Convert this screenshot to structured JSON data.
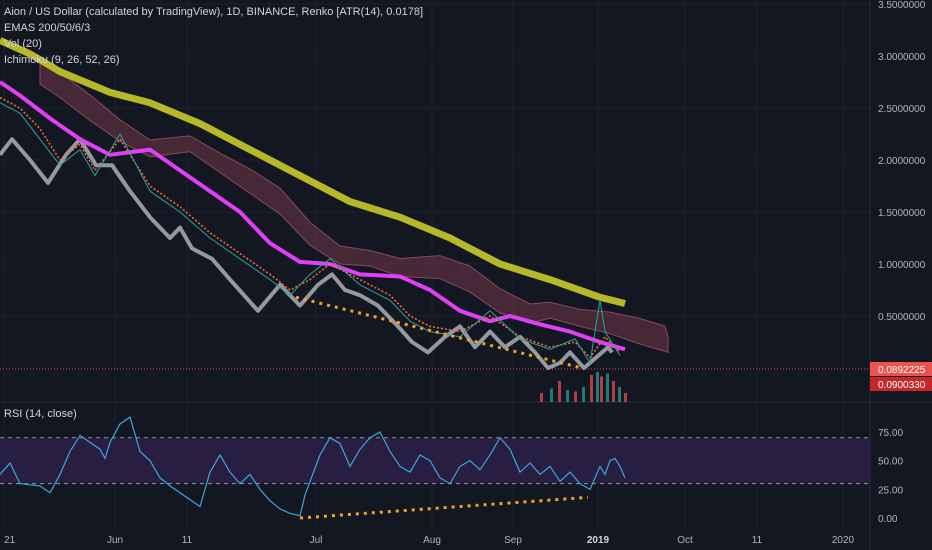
{
  "header": {
    "title": "Aion / US Dollar (calculated by TradingView), 1D, BINANCE, Renko [ATR(14), 0.0178]",
    "indicators": [
      "EMAS 200/50/6/3",
      "Vol (20)",
      "Ichimoku (9, 26, 52, 26)"
    ]
  },
  "rsi_panel": {
    "label": "RSI (14, close)"
  },
  "colors": {
    "background": "#131722",
    "renko": "#9598a1",
    "ema200": "#b7b72a",
    "ema50": "#e040fb",
    "ema6": "#ff6d3a",
    "ema3": "#26a69a",
    "cloud": "#7a3a4a",
    "rsi_line": "#3ba7d9",
    "rsi_band": "#2a1f45",
    "trend": "#f0a030",
    "price_tag_1": "#ef5350",
    "price_tag_2": "#c62828"
  },
  "chart_data": [
    {
      "type": "line",
      "title": "Aion / US Dollar (calculated by TradingView), 1D, BINANCE, Renko [ATR(14), 0.0178]",
      "x": [
        "21",
        "Jun",
        "11",
        "Jul",
        "Aug",
        "Sep",
        "2019",
        "Oct",
        "11",
        "2020"
      ],
      "y_ticks": [
        "0.5000000",
        "1.0000000",
        "1.5000000",
        "2.0000000",
        "2.5000000",
        "3.0000000",
        "3.5000000"
      ],
      "ylim": [
        0,
        3.5
      ],
      "price_tags": [
        "0.0892225",
        "0.0900330"
      ],
      "series": [
        {
          "name": "Renko",
          "values": [
            [
              0,
              2.05
            ],
            [
              12,
              2.2
            ],
            [
              30,
              2.0
            ],
            [
              48,
              1.78
            ],
            [
              66,
              2.05
            ],
            [
              80,
              2.2
            ],
            [
              96,
              1.95
            ],
            [
              112,
              1.95
            ],
            [
              130,
              1.7
            ],
            [
              150,
              1.45
            ],
            [
              170,
              1.25
            ],
            [
              180,
              1.35
            ],
            [
              192,
              1.15
            ],
            [
              212,
              1.05
            ],
            [
              230,
              0.85
            ],
            [
              258,
              0.55
            ],
            [
              280,
              0.8
            ],
            [
              290,
              0.7
            ],
            [
              300,
              0.6
            ],
            [
              318,
              0.8
            ],
            [
              332,
              0.9
            ],
            [
              345,
              0.75
            ],
            [
              360,
              0.7
            ],
            [
              378,
              0.6
            ],
            [
              398,
              0.4
            ],
            [
              412,
              0.25
            ],
            [
              428,
              0.15
            ],
            [
              445,
              0.3
            ],
            [
              460,
              0.4
            ],
            [
              475,
              0.2
            ],
            [
              490,
              0.35
            ],
            [
              505,
              0.2
            ],
            [
              520,
              0.3
            ],
            [
              535,
              0.15
            ],
            [
              548,
              0.0
            ],
            [
              560,
              0.05
            ],
            [
              570,
              0.15
            ],
            [
              584,
              0.0
            ],
            [
              596,
              0.1
            ],
            [
              608,
              0.2
            ],
            [
              612,
              0.15
            ]
          ]
        },
        {
          "name": "EMA 200",
          "values": [
            [
              0,
              3.15
            ],
            [
              30,
              3.02
            ],
            [
              60,
              2.85
            ],
            [
              110,
              2.65
            ],
            [
              150,
              2.55
            ],
            [
              200,
              2.35
            ],
            [
              250,
              2.1
            ],
            [
              300,
              1.85
            ],
            [
              350,
              1.6
            ],
            [
              400,
              1.45
            ],
            [
              450,
              1.25
            ],
            [
              500,
              1.0
            ],
            [
              550,
              0.85
            ],
            [
              600,
              0.68
            ],
            [
              625,
              0.62
            ]
          ]
        },
        {
          "name": "EMA 50",
          "values": [
            [
              0,
              2.75
            ],
            [
              20,
              2.62
            ],
            [
              50,
              2.4
            ],
            [
              80,
              2.2
            ],
            [
              110,
              2.05
            ],
            [
              150,
              2.1
            ],
            [
              180,
              1.9
            ],
            [
              210,
              1.7
            ],
            [
              240,
              1.5
            ],
            [
              270,
              1.2
            ],
            [
              300,
              1.02
            ],
            [
              330,
              1.0
            ],
            [
              360,
              0.9
            ],
            [
              400,
              0.88
            ],
            [
              430,
              0.75
            ],
            [
              460,
              0.55
            ],
            [
              490,
              0.45
            ],
            [
              510,
              0.5
            ],
            [
              540,
              0.42
            ],
            [
              570,
              0.35
            ],
            [
              600,
              0.25
            ],
            [
              625,
              0.18
            ]
          ]
        },
        {
          "name": "EMA 6",
          "values": [
            [
              0,
              2.6
            ],
            [
              20,
              2.5
            ],
            [
              40,
              2.3
            ],
            [
              60,
              2.0
            ],
            [
              80,
              2.15
            ],
            [
              95,
              1.9
            ],
            [
              120,
              2.2
            ],
            [
              150,
              1.75
            ],
            [
              180,
              1.55
            ],
            [
              210,
              1.3
            ],
            [
              240,
              1.1
            ],
            [
              270,
              0.9
            ],
            [
              290,
              0.75
            ],
            [
              310,
              0.85
            ],
            [
              330,
              1.0
            ],
            [
              360,
              0.85
            ],
            [
              390,
              0.7
            ],
            [
              410,
              0.5
            ],
            [
              430,
              0.4
            ],
            [
              460,
              0.35
            ],
            [
              490,
              0.5
            ],
            [
              520,
              0.3
            ],
            [
              550,
              0.2
            ],
            [
              575,
              0.25
            ],
            [
              590,
              0.1
            ],
            [
              605,
              0.3
            ],
            [
              620,
              0.15
            ]
          ]
        },
        {
          "name": "EMA 3",
          "values": [
            [
              0,
              2.55
            ],
            [
              20,
              2.45
            ],
            [
              40,
              2.2
            ],
            [
              60,
              1.95
            ],
            [
              80,
              2.1
            ],
            [
              95,
              1.85
            ],
            [
              120,
              2.25
            ],
            [
              150,
              1.7
            ],
            [
              180,
              1.5
            ],
            [
              210,
              1.25
            ],
            [
              240,
              1.05
            ],
            [
              270,
              0.85
            ],
            [
              290,
              0.7
            ],
            [
              310,
              0.9
            ],
            [
              330,
              1.05
            ],
            [
              360,
              0.8
            ],
            [
              390,
              0.65
            ],
            [
              410,
              0.45
            ],
            [
              430,
              0.35
            ],
            [
              460,
              0.3
            ],
            [
              490,
              0.55
            ],
            [
              520,
              0.28
            ],
            [
              550,
              0.18
            ],
            [
              575,
              0.28
            ],
            [
              590,
              0.05
            ],
            [
              600,
              0.65
            ],
            [
              605,
              0.35
            ],
            [
              620,
              0.12
            ]
          ]
        }
      ],
      "volume": [
        [
          540,
          0.3
        ],
        [
          550,
          0.45
        ],
        [
          558,
          0.7
        ],
        [
          566,
          0.4
        ],
        [
          574,
          0.35
        ],
        [
          582,
          0.5
        ],
        [
          590,
          0.9
        ],
        [
          596,
          1.0
        ],
        [
          600,
          0.85
        ],
        [
          606,
          0.95
        ],
        [
          612,
          0.7
        ],
        [
          618,
          0.5
        ],
        [
          624,
          0.3
        ]
      ]
    },
    {
      "type": "line",
      "title": "RSI (14, close)",
      "y_ticks": [
        "0.00",
        "25.00",
        "50.00",
        "75.00"
      ],
      "ylim": [
        0,
        85
      ],
      "series": [
        {
          "name": "RSI",
          "values": [
            [
              0,
              38
            ],
            [
              10,
              48
            ],
            [
              20,
              30
            ],
            [
              40,
              28
            ],
            [
              50,
              22
            ],
            [
              60,
              38
            ],
            [
              70,
              58
            ],
            [
              80,
              72
            ],
            [
              90,
              66
            ],
            [
              100,
              60
            ],
            [
              105,
              52
            ],
            [
              110,
              66
            ],
            [
              120,
              82
            ],
            [
              130,
              88
            ],
            [
              140,
              58
            ],
            [
              150,
              50
            ],
            [
              160,
              35
            ],
            [
              170,
              28
            ],
            [
              180,
              22
            ],
            [
              200,
              10
            ],
            [
              210,
              40
            ],
            [
              220,
              55
            ],
            [
              230,
              40
            ],
            [
              240,
              30
            ],
            [
              250,
              38
            ],
            [
              260,
              25
            ],
            [
              270,
              15
            ],
            [
              280,
              8
            ],
            [
              290,
              4
            ],
            [
              300,
              2
            ],
            [
              305,
              20
            ],
            [
              320,
              55
            ],
            [
              330,
              70
            ],
            [
              340,
              65
            ],
            [
              350,
              45
            ],
            [
              360,
              60
            ],
            [
              370,
              70
            ],
            [
              380,
              75
            ],
            [
              390,
              58
            ],
            [
              400,
              45
            ],
            [
              410,
              40
            ],
            [
              420,
              55
            ],
            [
              430,
              50
            ],
            [
              440,
              35
            ],
            [
              450,
              30
            ],
            [
              460,
              45
            ],
            [
              470,
              50
            ],
            [
              480,
              42
            ],
            [
              490,
              55
            ],
            [
              500,
              70
            ],
            [
              510,
              60
            ],
            [
              520,
              40
            ],
            [
              530,
              48
            ],
            [
              540,
              38
            ],
            [
              550,
              45
            ],
            [
              560,
              32
            ],
            [
              570,
              40
            ],
            [
              580,
              30
            ],
            [
              590,
              25
            ],
            [
              600,
              45
            ],
            [
              605,
              38
            ],
            [
              610,
              50
            ],
            [
              615,
              52
            ],
            [
              620,
              45
            ],
            [
              625,
              35
            ]
          ]
        }
      ]
    }
  ]
}
